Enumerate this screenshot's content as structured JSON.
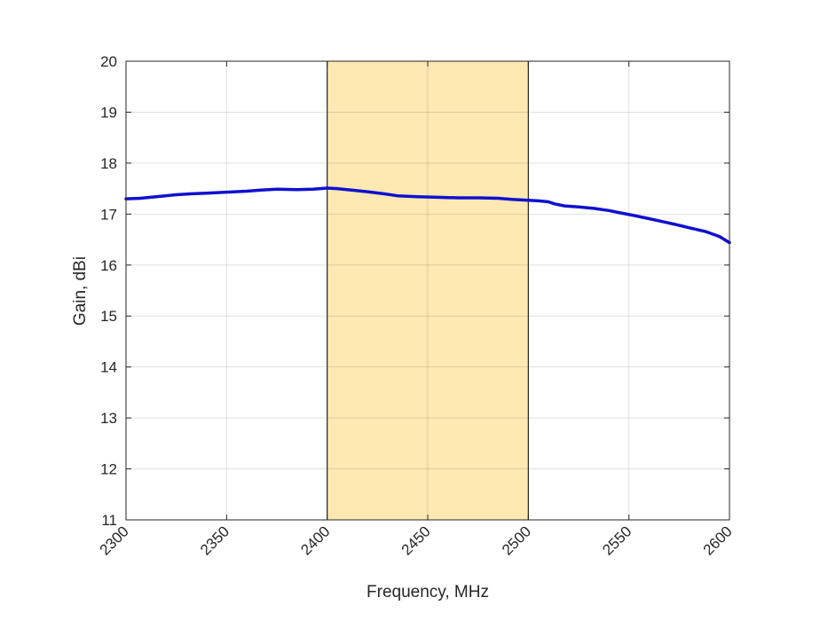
{
  "chart_data": {
    "type": "line",
    "title": "",
    "xlabel": "Frequency, MHz",
    "ylabel": "Gain, dBi",
    "xlim": [
      2300,
      2600
    ],
    "ylim": [
      11,
      20
    ],
    "xticks": [
      2300,
      2350,
      2400,
      2450,
      2500,
      2550,
      2600
    ],
    "yticks": [
      11,
      12,
      13,
      14,
      15,
      16,
      17,
      18,
      19,
      20
    ],
    "grid": true,
    "highlight_band": {
      "x_start": 2400,
      "x_end": 2500,
      "color": "#fde9b1"
    },
    "series": [
      {
        "color": "#1010d0",
        "x": [
          2300,
          2307,
          2315,
          2325,
          2333,
          2340,
          2350,
          2360,
          2367,
          2375,
          2385,
          2393,
          2400,
          2405,
          2412,
          2420,
          2428,
          2435,
          2445,
          2455,
          2465,
          2475,
          2485,
          2492,
          2500,
          2505,
          2510,
          2513,
          2518,
          2525,
          2533,
          2540,
          2545,
          2553,
          2560,
          2567,
          2575,
          2580,
          2588,
          2595,
          2600
        ],
        "y": [
          17.3,
          17.31,
          17.34,
          17.38,
          17.4,
          17.41,
          17.43,
          17.45,
          17.47,
          17.49,
          17.48,
          17.49,
          17.51,
          17.5,
          17.47,
          17.44,
          17.4,
          17.36,
          17.34,
          17.33,
          17.32,
          17.32,
          17.31,
          17.29,
          17.27,
          17.26,
          17.24,
          17.2,
          17.16,
          17.14,
          17.11,
          17.07,
          17.03,
          16.97,
          16.91,
          16.85,
          16.78,
          16.73,
          16.66,
          16.56,
          16.44
        ]
      }
    ]
  }
}
